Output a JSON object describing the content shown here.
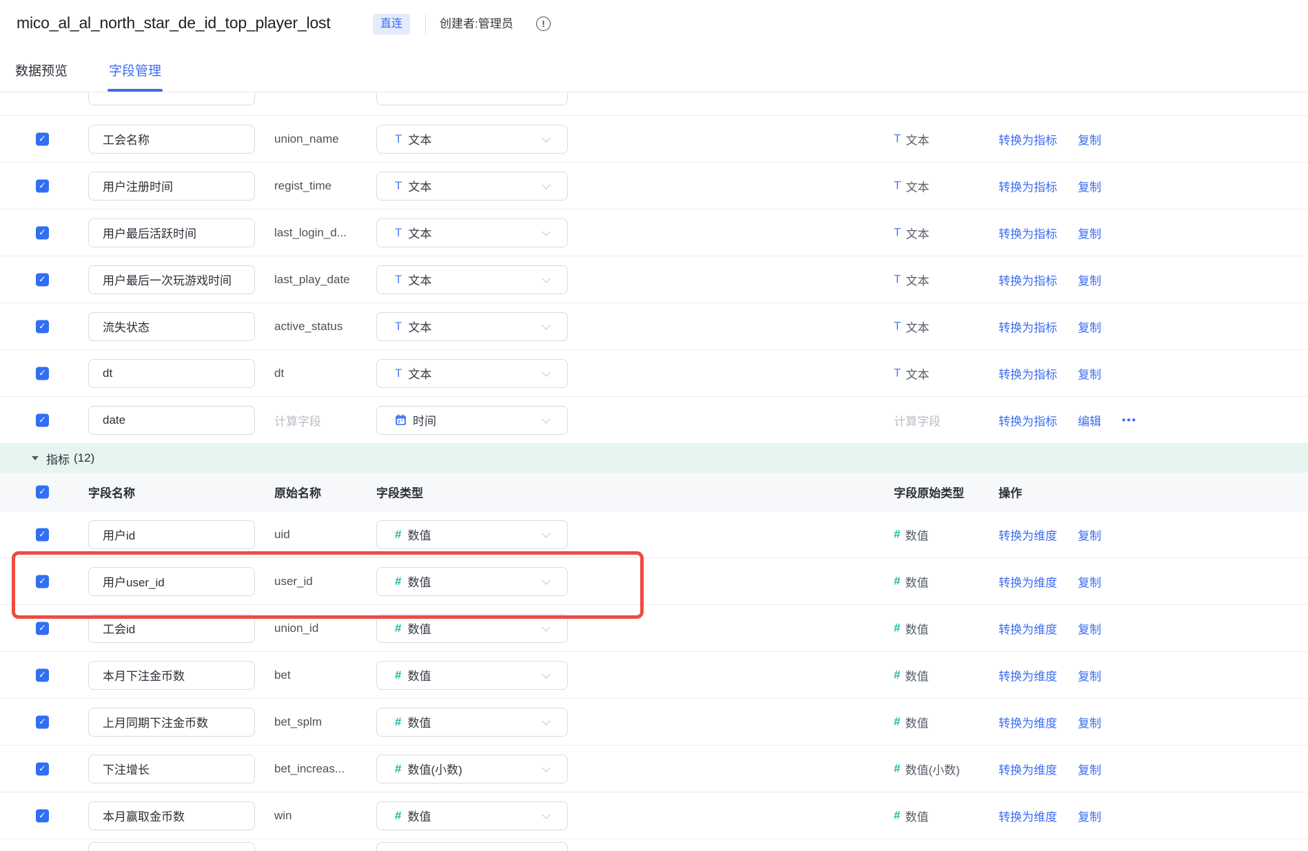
{
  "header": {
    "title": "mico_al_al_north_star_de_id_top_player_lost",
    "badge": "直连",
    "creator": "创建者:管理员"
  },
  "tabs": [
    {
      "label": "数据预览",
      "active": false
    },
    {
      "label": "字段管理",
      "active": true
    }
  ],
  "columns": {
    "name": "字段名称",
    "original_name": "原始名称",
    "type": "字段类型",
    "original_type": "字段原始类型",
    "actions": "操作"
  },
  "type_labels": {
    "text": "文本",
    "time": "时间",
    "numeric": "数值",
    "numeric_decimal": "数值(小数)",
    "calculated": "计算字段"
  },
  "actions": {
    "to_metric": "转换为指标",
    "to_dimension": "转换为维度",
    "copy": "复制",
    "edit": "编辑"
  },
  "icons": {
    "check": "✓",
    "text_type": "T",
    "numeric_type": "#",
    "more": "•••",
    "info": "!"
  },
  "metrics_section": {
    "label": "指标",
    "count_display": "(12)"
  },
  "dimension_rows": [
    {
      "name": "工会名称",
      "original": "union_name",
      "type": "text",
      "orig_type": "text",
      "actions": [
        "to_metric",
        "copy"
      ]
    },
    {
      "name": "用户注册时间",
      "original": "regist_time",
      "type": "text",
      "orig_type": "text",
      "actions": [
        "to_metric",
        "copy"
      ]
    },
    {
      "name": "用户最后活跃时间",
      "original": "last_login_d...",
      "type": "text",
      "orig_type": "text",
      "actions": [
        "to_metric",
        "copy"
      ]
    },
    {
      "name": "用户最后一次玩游戏时间",
      "original": "last_play_date",
      "type": "text",
      "orig_type": "text",
      "actions": [
        "to_metric",
        "copy"
      ]
    },
    {
      "name": "流失状态",
      "original": "active_status",
      "type": "text",
      "orig_type": "text",
      "actions": [
        "to_metric",
        "copy"
      ]
    },
    {
      "name": "dt",
      "original": "dt",
      "type": "text",
      "orig_type": "text",
      "actions": [
        "to_metric",
        "copy"
      ]
    },
    {
      "name": "date",
      "original": "计算字段",
      "original_muted": true,
      "type": "time",
      "orig_type": "calculated",
      "actions": [
        "to_metric",
        "edit",
        "more"
      ]
    }
  ],
  "metric_rows": [
    {
      "name": "用户id",
      "original": "uid",
      "type": "numeric",
      "orig_type": "numeric",
      "actions": [
        "to_dimension",
        "copy"
      ]
    },
    {
      "name": "用户user_id",
      "original": "user_id",
      "type": "numeric",
      "orig_type": "numeric",
      "actions": [
        "to_dimension",
        "copy"
      ],
      "highlighted": true
    },
    {
      "name": "工会id",
      "original": "union_id",
      "type": "numeric",
      "orig_type": "numeric",
      "actions": [
        "to_dimension",
        "copy"
      ]
    },
    {
      "name": "本月下注金币数",
      "original": "bet",
      "type": "numeric",
      "orig_type": "numeric",
      "actions": [
        "to_dimension",
        "copy"
      ]
    },
    {
      "name": "上月同期下注金币数",
      "original": "bet_splm",
      "type": "numeric",
      "orig_type": "numeric",
      "actions": [
        "to_dimension",
        "copy"
      ]
    },
    {
      "name": "下注增长",
      "original": "bet_increas...",
      "type": "numeric_decimal",
      "orig_type": "numeric_decimal",
      "actions": [
        "to_dimension",
        "copy"
      ]
    },
    {
      "name": "本月赢取金币数",
      "original": "win",
      "type": "numeric",
      "orig_type": "numeric",
      "actions": [
        "to_dimension",
        "copy"
      ]
    }
  ],
  "colors": {
    "accent_blue": "#3d6df2",
    "checkbox_blue": "#306ef5",
    "metric_teal": "#20b7a2",
    "annotation_red": "#ee4b40",
    "section_bg": "#e6f5f0"
  }
}
